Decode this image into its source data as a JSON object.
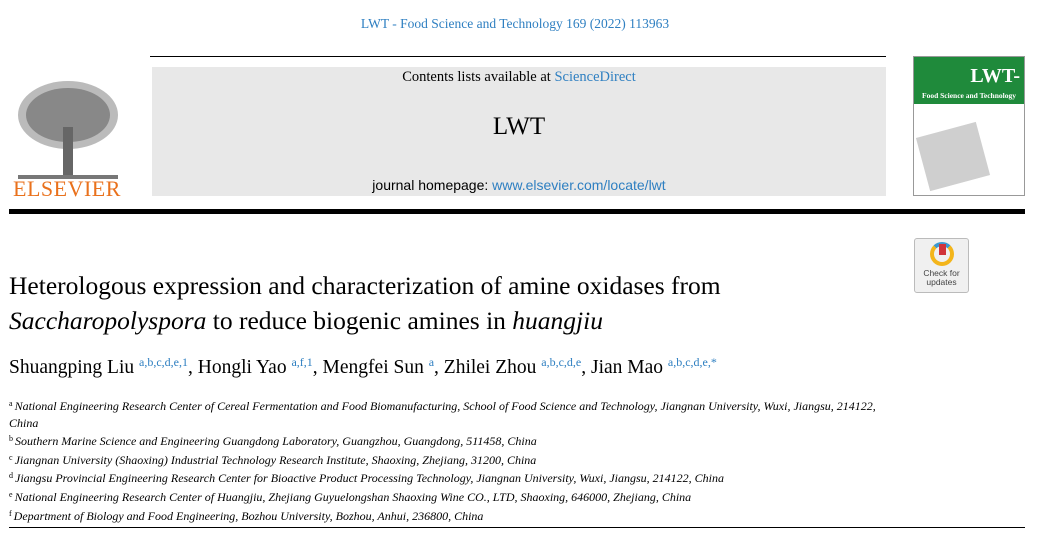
{
  "journal_ref": "LWT - Food Science and Technology 169 (2022) 113963",
  "publisher": "ELSEVIER",
  "masthead": {
    "contents_prefix": "Contents lists available at ",
    "contents_link": "ScienceDirect",
    "journal": "LWT",
    "homepage_prefix": "journal homepage: ",
    "homepage_link": "www.elsevier.com/locate/lwt"
  },
  "cover": {
    "title": "LWT-",
    "subtitle": "Food Science and Technology",
    "color": "#1f8a3b"
  },
  "check_updates": {
    "line1": "Check for",
    "line2": "updates"
  },
  "title": {
    "p1": "Heterologous expression and characterization of amine oxidases from",
    "p2": "Saccharopolyspora",
    "p3": " to reduce biogenic amines in ",
    "p4": "huangjiu"
  },
  "authors": [
    {
      "name": "Shuangping Liu",
      "sup": "a,b,c,d,e,1"
    },
    {
      "name": "Hongli Yao",
      "sup": "a,f,1"
    },
    {
      "name": "Mengfei Sun",
      "sup": "a"
    },
    {
      "name": "Zhilei Zhou",
      "sup": "a,b,c,d,e"
    },
    {
      "name": "Jian Mao",
      "sup": "a,b,c,d,e,*"
    }
  ],
  "affiliations": [
    {
      "key": "a",
      "text": "National Engineering Research Center of Cereal Fermentation and Food Biomanufacturing, School of Food Science and Technology, Jiangnan University, Wuxi, Jiangsu, 214122, China"
    },
    {
      "key": "b",
      "text": "Southern Marine Science and Engineering Guangdong Laboratory, Guangzhou, Guangdong, 511458, China"
    },
    {
      "key": "c",
      "text": "Jiangnan University (Shaoxing) Industrial Technology Research Institute, Shaoxing, Zhejiang, 31200, China"
    },
    {
      "key": "d",
      "text": "Jiangsu Provincial Engineering Research Center for Bioactive Product Processing Technology, Jiangnan University, Wuxi, Jiangsu, 214122, China"
    },
    {
      "key": "e",
      "text": "National Engineering Research Center of Huangjiu, Zhejiang Guyuelongshan Shaoxing Wine CO., LTD, Shaoxing, 646000, Zhejiang, China"
    },
    {
      "key": "f",
      "text": "Department of Biology and Food Engineering, Bozhou University, Bozhou, Anhui, 236800, China"
    }
  ]
}
